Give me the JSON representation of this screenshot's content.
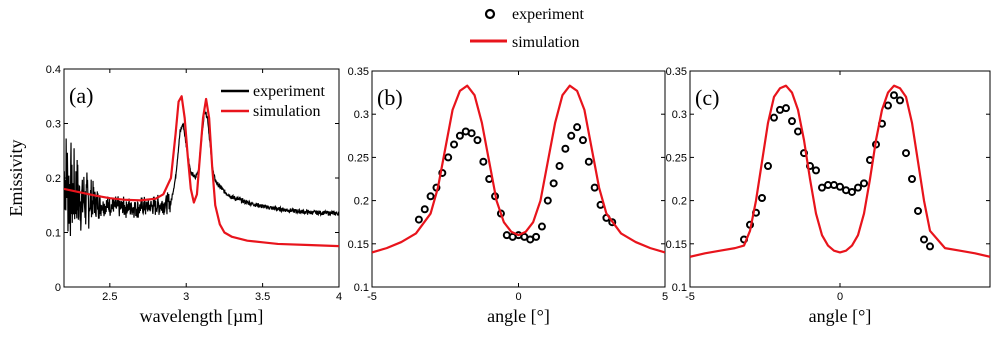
{
  "figure_legend": {
    "entries": [
      {
        "label": "experiment",
        "marker": "open-circle",
        "color": "#000000"
      },
      {
        "label": "simulation",
        "marker": "line",
        "color": "#e8141c"
      }
    ]
  },
  "chart_data": [
    {
      "type": "line",
      "panel_label": "(a)",
      "xlabel": "wavelength [µm]",
      "ylabel": "Emissivity",
      "xlim": [
        2.2,
        4.0
      ],
      "ylim": [
        0.0,
        0.4
      ],
      "xticks": [
        "2.5",
        "3",
        "3.5",
        "4"
      ],
      "yticks": [
        "0",
        "0.1",
        "0.2",
        "0.3",
        "0.4"
      ],
      "legend": {
        "placement": "top-right",
        "entries": [
          "experiment",
          "simulation"
        ]
      },
      "grid": false,
      "series": [
        {
          "name": "experiment",
          "color": "#000000",
          "noisy_below_x": 2.9,
          "x": [
            2.2,
            2.25,
            2.3,
            2.4,
            2.5,
            2.6,
            2.7,
            2.8,
            2.9,
            2.93,
            2.96,
            2.98,
            3.0,
            3.03,
            3.06,
            3.08,
            3.1,
            3.12,
            3.14,
            3.16,
            3.18,
            3.2,
            3.25,
            3.3,
            3.4,
            3.5,
            3.6,
            3.7,
            3.8,
            3.9,
            4.0
          ],
          "y": [
            0.2,
            0.175,
            0.162,
            0.153,
            0.148,
            0.146,
            0.146,
            0.149,
            0.155,
            0.2,
            0.285,
            0.3,
            0.26,
            0.21,
            0.2,
            0.215,
            0.27,
            0.325,
            0.31,
            0.25,
            0.205,
            0.19,
            0.175,
            0.165,
            0.155,
            0.148,
            0.143,
            0.14,
            0.137,
            0.136,
            0.135
          ]
        },
        {
          "name": "simulation",
          "color": "#e8141c",
          "x": [
            2.2,
            2.3,
            2.4,
            2.5,
            2.6,
            2.7,
            2.8,
            2.85,
            2.9,
            2.93,
            2.95,
            2.97,
            2.99,
            3.01,
            3.03,
            3.05,
            3.07,
            3.09,
            3.11,
            3.13,
            3.15,
            3.17,
            3.19,
            3.22,
            3.25,
            3.3,
            3.4,
            3.5,
            3.6,
            3.8,
            4.0
          ],
          "y": [
            0.18,
            0.174,
            0.168,
            0.163,
            0.16,
            0.159,
            0.162,
            0.17,
            0.2,
            0.28,
            0.34,
            0.35,
            0.31,
            0.24,
            0.18,
            0.155,
            0.17,
            0.24,
            0.31,
            0.345,
            0.31,
            0.22,
            0.15,
            0.115,
            0.1,
            0.092,
            0.085,
            0.082,
            0.079,
            0.077,
            0.075
          ]
        }
      ]
    },
    {
      "type": "line",
      "panel_label": "(b)",
      "xlabel": "angle [°]",
      "ylabel": "",
      "xlim": [
        -5,
        5
      ],
      "ylim": [
        0.1,
        0.35
      ],
      "xticks": [
        "-5",
        "0",
        "5"
      ],
      "yticks": [
        "0.1",
        "0.15",
        "0.2",
        "0.25",
        "0.3",
        "0.35"
      ],
      "grid": false,
      "series": [
        {
          "name": "experiment",
          "style": "open-circle",
          "color": "#000000",
          "x": [
            -3.4,
            -3.2,
            -3.0,
            -2.8,
            -2.6,
            -2.4,
            -2.2,
            -2.0,
            -1.8,
            -1.6,
            -1.4,
            -1.2,
            -1.0,
            -0.8,
            -0.6,
            -0.4,
            -0.2,
            0.0,
            0.2,
            0.4,
            0.6,
            0.8,
            1.0,
            1.2,
            1.4,
            1.6,
            1.8,
            2.0,
            2.2,
            2.4,
            2.6,
            2.8,
            3.0,
            3.2
          ],
          "y": [
            0.178,
            0.19,
            0.205,
            0.215,
            0.232,
            0.25,
            0.265,
            0.275,
            0.28,
            0.278,
            0.27,
            0.245,
            0.225,
            0.205,
            0.185,
            0.16,
            0.158,
            0.16,
            0.158,
            0.155,
            0.158,
            0.17,
            0.2,
            0.22,
            0.24,
            0.26,
            0.275,
            0.285,
            0.27,
            0.245,
            0.215,
            0.195,
            0.18,
            0.175
          ]
        },
        {
          "name": "simulation",
          "color": "#e8141c",
          "x": [
            -5.0,
            -4.5,
            -4.0,
            -3.5,
            -3.0,
            -2.75,
            -2.5,
            -2.25,
            -2.0,
            -1.75,
            -1.5,
            -1.25,
            -1.0,
            -0.75,
            -0.5,
            -0.25,
            0.0,
            0.25,
            0.5,
            0.75,
            1.0,
            1.25,
            1.5,
            1.75,
            2.0,
            2.25,
            2.5,
            2.75,
            3.0,
            3.5,
            4.0,
            4.5,
            5.0
          ],
          "y": [
            0.14,
            0.145,
            0.152,
            0.162,
            0.185,
            0.215,
            0.26,
            0.305,
            0.327,
            0.333,
            0.322,
            0.29,
            0.245,
            0.2,
            0.175,
            0.164,
            0.16,
            0.164,
            0.175,
            0.2,
            0.245,
            0.29,
            0.322,
            0.333,
            0.327,
            0.305,
            0.26,
            0.215,
            0.185,
            0.162,
            0.152,
            0.145,
            0.14
          ]
        }
      ]
    },
    {
      "type": "line",
      "panel_label": "(c)",
      "xlabel": "angle [°]",
      "ylabel": "",
      "xlim": [
        -5,
        5
      ],
      "ylim": [
        0.1,
        0.35
      ],
      "xticks": [
        "-5",
        "0"
      ],
      "yticks": [
        "0.1",
        "0.15",
        "0.2",
        "0.25",
        "0.3",
        "0.35"
      ],
      "grid": false,
      "series": [
        {
          "name": "experiment",
          "style": "open-circle",
          "color": "#000000",
          "x": [
            -3.2,
            -3.0,
            -2.8,
            -2.6,
            -2.4,
            -2.2,
            -2.0,
            -1.8,
            -1.6,
            -1.4,
            -1.2,
            -1.0,
            -0.8,
            -0.6,
            -0.4,
            -0.2,
            0.0,
            0.2,
            0.4,
            0.6,
            0.8,
            1.0,
            1.2,
            1.4,
            1.6,
            1.8,
            2.0,
            2.2,
            2.4,
            2.6,
            2.8,
            3.0
          ],
          "y": [
            0.155,
            0.172,
            0.186,
            0.203,
            0.24,
            0.296,
            0.305,
            0.307,
            0.292,
            0.28,
            0.255,
            0.24,
            0.235,
            0.215,
            0.218,
            0.218,
            0.216,
            0.212,
            0.21,
            0.215,
            0.22,
            0.247,
            0.265,
            0.289,
            0.31,
            0.322,
            0.316,
            0.255,
            0.225,
            0.188,
            0.155,
            0.147
          ]
        },
        {
          "name": "simulation",
          "color": "#e8141c",
          "x": [
            -5.0,
            -4.5,
            -4.0,
            -3.5,
            -3.2,
            -3.0,
            -2.8,
            -2.6,
            -2.4,
            -2.2,
            -2.0,
            -1.8,
            -1.6,
            -1.4,
            -1.2,
            -1.0,
            -0.8,
            -0.6,
            -0.4,
            -0.2,
            0.0,
            0.2,
            0.4,
            0.6,
            0.8,
            1.0,
            1.2,
            1.4,
            1.6,
            1.8,
            2.0,
            2.2,
            2.4,
            2.6,
            2.8,
            3.0,
            3.5,
            4.0,
            4.5,
            5.0
          ],
          "y": [
            0.135,
            0.139,
            0.142,
            0.145,
            0.148,
            0.165,
            0.2,
            0.245,
            0.29,
            0.32,
            0.33,
            0.333,
            0.325,
            0.305,
            0.27,
            0.225,
            0.185,
            0.16,
            0.148,
            0.142,
            0.14,
            0.142,
            0.148,
            0.16,
            0.185,
            0.225,
            0.27,
            0.305,
            0.325,
            0.333,
            0.33,
            0.32,
            0.29,
            0.245,
            0.2,
            0.165,
            0.145,
            0.142,
            0.139,
            0.135
          ]
        }
      ]
    }
  ]
}
